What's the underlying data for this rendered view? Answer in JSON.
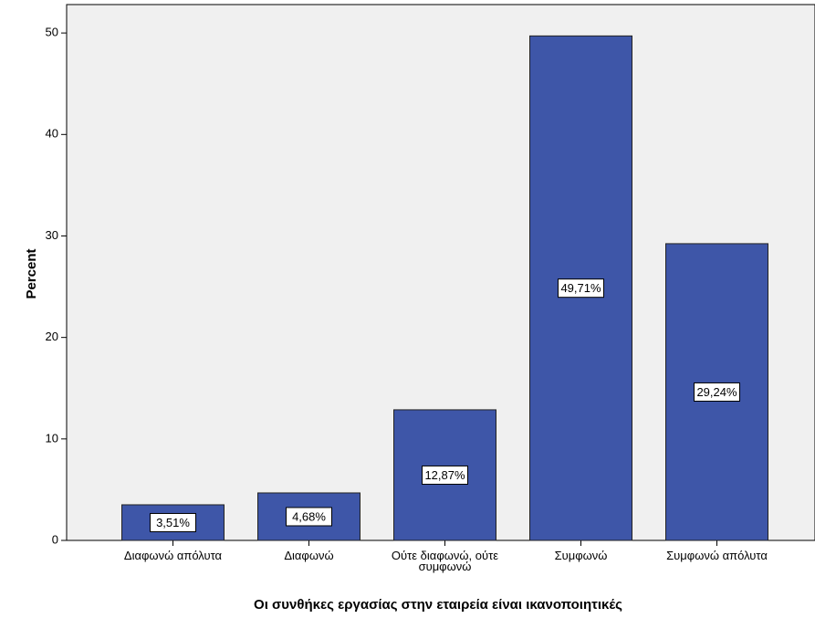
{
  "chart_data": {
    "type": "bar",
    "x_label": "Οι συνθήκες εργασίας στην εταιρεία είναι ικανοποιητικές",
    "y_label": "Percent",
    "categories": [
      "Διαφωνώ απόλυτα",
      "Διαφωνώ",
      "Ούτε διαφωνώ, ούτε συμφωνώ",
      "Συμφωνώ",
      "Συμφωνώ απόλυτα"
    ],
    "values": [
      3.51,
      4.68,
      12.87,
      49.71,
      29.24
    ],
    "value_labels": [
      "3,51%",
      "4,68%",
      "12,87%",
      "49,71%",
      "29,24%"
    ],
    "color": "#3e56a8",
    "ylim": [
      0,
      52.8
    ],
    "yticks": [
      0,
      10,
      20,
      30,
      40,
      50
    ]
  }
}
